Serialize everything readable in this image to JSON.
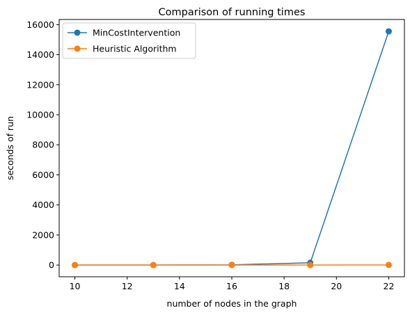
{
  "chart_data": {
    "type": "line",
    "title": "Comparison of running times",
    "xlabel": "number of nodes in the graph",
    "ylabel": "seconds of run",
    "x": [
      10,
      13,
      16,
      19,
      22
    ],
    "xlim": [
      9.4,
      22.6
    ],
    "ylim": [
      -780,
      16340
    ],
    "xticks": [
      10,
      12,
      14,
      16,
      18,
      20,
      22
    ],
    "yticks": [
      0,
      2000,
      4000,
      6000,
      8000,
      10000,
      12000,
      14000,
      16000
    ],
    "grid": false,
    "legend_position": "top-left",
    "series": [
      {
        "name": "MinCostIntervention",
        "color": "#1f77b4",
        "values": [
          0.5,
          2,
          15,
          150,
          15550
        ]
      },
      {
        "name": "Heuristic Algorithm",
        "color": "#ff7f0e",
        "values": [
          0.1,
          0.3,
          1,
          3,
          8
        ]
      }
    ]
  }
}
